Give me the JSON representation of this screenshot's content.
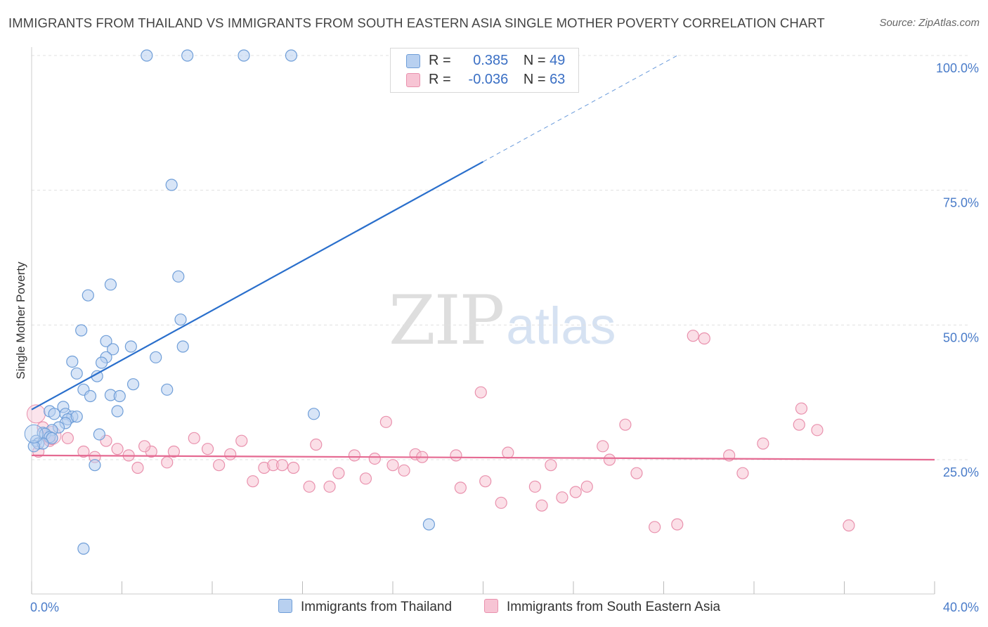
{
  "title": "IMMIGRANTS FROM THAILAND VS IMMIGRANTS FROM SOUTH EASTERN ASIA SINGLE MOTHER POVERTY CORRELATION CHART",
  "source": "Source: ZipAtlas.com",
  "watermark": {
    "zip": "ZIP",
    "atlas": "atlas"
  },
  "legend": {
    "rows": [
      {
        "r_label": "R =",
        "r_value": "0.385",
        "n_label": "N =",
        "n_value": "49"
      },
      {
        "r_label": "R =",
        "r_value": "-0.036",
        "n_label": "N =",
        "n_value": "63"
      }
    ]
  },
  "bottom_legend": [
    {
      "label": "Immigrants from Thailand"
    },
    {
      "label": "Immigrants from South Eastern Asia"
    }
  ],
  "colors": {
    "blue_fill": "#b8d0f0",
    "blue_stroke": "#6f9ed8",
    "blue_line": "#2a6fcc",
    "pink_fill": "#f7c4d4",
    "pink_stroke": "#e991ad",
    "pink_line": "#e56a92",
    "axis_text": "#4a7cc9",
    "grid": "#e0e0e0"
  },
  "chart_data": {
    "type": "scatter",
    "title": "IMMIGRANTS FROM THAILAND VS IMMIGRANTS FROM SOUTH EASTERN ASIA SINGLE MOTHER POVERTY CORRELATION CHART",
    "xlabel": "",
    "ylabel": "Single Mother Poverty",
    "xlim": [
      0,
      40
    ],
    "ylim": [
      0,
      103
    ],
    "x_tick_labels": [
      {
        "value": 0,
        "label": "0.0%"
      },
      {
        "value": 40,
        "label": "40.0%"
      }
    ],
    "y_tick_labels": [
      {
        "value": 25,
        "label": "25.0%"
      },
      {
        "value": 50,
        "label": "50.0%"
      },
      {
        "value": 75,
        "label": "75.0%"
      },
      {
        "value": 100,
        "label": "100.0%"
      }
    ],
    "series": [
      {
        "name": "Immigrants from Thailand",
        "R": 0.385,
        "N": 49,
        "trend": {
          "x0": 0.0,
          "y0": 34.3,
          "x1": 20.0,
          "y1": 80.3,
          "dashed_to_x": 28.6,
          "dashed_to_y": 100.0
        },
        "points": [
          [
            5.1,
            100.0
          ],
          [
            6.9,
            100.0
          ],
          [
            9.4,
            100.0
          ],
          [
            11.5,
            100.0
          ],
          [
            6.2,
            76.0
          ],
          [
            6.5,
            59.0
          ],
          [
            6.6,
            51.0
          ],
          [
            6.7,
            46.0
          ],
          [
            2.5,
            55.5
          ],
          [
            3.5,
            57.5
          ],
          [
            2.2,
            49.0
          ],
          [
            3.3,
            47.0
          ],
          [
            3.6,
            45.5
          ],
          [
            3.3,
            44.0
          ],
          [
            3.1,
            43.0
          ],
          [
            1.8,
            43.2
          ],
          [
            2.0,
            41.0
          ],
          [
            2.9,
            40.5
          ],
          [
            4.4,
            46.0
          ],
          [
            5.5,
            44.0
          ],
          [
            4.5,
            39.0
          ],
          [
            6.0,
            38.0
          ],
          [
            2.3,
            38.0
          ],
          [
            2.6,
            36.8
          ],
          [
            3.5,
            37.0
          ],
          [
            3.9,
            36.8
          ],
          [
            3.8,
            34.0
          ],
          [
            0.8,
            34.0
          ],
          [
            1.0,
            33.5
          ],
          [
            1.4,
            34.8
          ],
          [
            1.5,
            33.5
          ],
          [
            1.8,
            33.0
          ],
          [
            1.6,
            32.5
          ],
          [
            2.0,
            33.0
          ],
          [
            1.5,
            31.8
          ],
          [
            1.2,
            31.0
          ],
          [
            0.9,
            30.5
          ],
          [
            0.5,
            30.0
          ],
          [
            0.6,
            29.8
          ],
          [
            0.8,
            29.2
          ],
          [
            0.9,
            29.0
          ],
          [
            0.2,
            28.5
          ],
          [
            0.3,
            28.0
          ],
          [
            0.5,
            28.0
          ],
          [
            0.1,
            27.5
          ],
          [
            3.0,
            29.7
          ],
          [
            2.8,
            24.0
          ],
          [
            12.5,
            33.5
          ],
          [
            17.6,
            13.0
          ]
        ],
        "big_points": [
          [
            0.1,
            29.8
          ]
        ],
        "point_extra": [
          [
            2.3,
            8.5
          ]
        ]
      },
      {
        "name": "Immigrants from South Eastern Asia",
        "R": -0.036,
        "N": 63,
        "trend": {
          "x0": 0.0,
          "y0": 25.8,
          "x1": 40.0,
          "y1": 25.0
        },
        "points": [
          [
            0.5,
            31.0
          ],
          [
            0.8,
            28.5
          ],
          [
            1.6,
            29.0
          ],
          [
            3.3,
            28.5
          ],
          [
            3.8,
            27.0
          ],
          [
            4.3,
            25.8
          ],
          [
            4.7,
            23.5
          ],
          [
            5.3,
            26.5
          ],
          [
            6.3,
            26.5
          ],
          [
            7.2,
            29.0
          ],
          [
            7.8,
            27.0
          ],
          [
            8.3,
            24.0
          ],
          [
            8.8,
            26.0
          ],
          [
            9.3,
            28.5
          ],
          [
            9.8,
            21.0
          ],
          [
            10.3,
            23.5
          ],
          [
            10.7,
            24.0
          ],
          [
            11.1,
            24.0
          ],
          [
            11.6,
            23.5
          ],
          [
            12.3,
            20.0
          ],
          [
            12.6,
            27.8
          ],
          [
            13.2,
            20.0
          ],
          [
            13.6,
            22.5
          ],
          [
            14.3,
            25.8
          ],
          [
            14.8,
            21.5
          ],
          [
            15.2,
            25.2
          ],
          [
            15.7,
            32.0
          ],
          [
            16.0,
            24.0
          ],
          [
            16.5,
            23.0
          ],
          [
            17.0,
            26.0
          ],
          [
            17.3,
            25.5
          ],
          [
            18.8,
            25.8
          ],
          [
            19.0,
            19.8
          ],
          [
            19.9,
            37.5
          ],
          [
            20.1,
            21.0
          ],
          [
            20.8,
            17.0
          ],
          [
            21.1,
            26.3
          ],
          [
            22.3,
            20.0
          ],
          [
            22.6,
            16.5
          ],
          [
            23.0,
            24.0
          ],
          [
            23.5,
            18.0
          ],
          [
            24.1,
            19.0
          ],
          [
            24.6,
            20.0
          ],
          [
            25.3,
            27.5
          ],
          [
            25.6,
            25.0
          ],
          [
            26.3,
            31.5
          ],
          [
            26.8,
            22.5
          ],
          [
            27.6,
            12.5
          ],
          [
            28.6,
            13.0
          ],
          [
            29.3,
            48.0
          ],
          [
            29.8,
            47.5
          ],
          [
            30.9,
            25.8
          ],
          [
            31.5,
            22.5
          ],
          [
            32.4,
            28.0
          ],
          [
            34.0,
            31.5
          ],
          [
            34.1,
            34.5
          ],
          [
            34.8,
            30.5
          ],
          [
            36.2,
            12.8
          ],
          [
            2.3,
            26.5
          ],
          [
            2.8,
            25.5
          ],
          [
            0.3,
            26.5
          ],
          [
            5.0,
            27.5
          ],
          [
            6.0,
            24.5
          ]
        ],
        "big_points": [
          [
            0.2,
            33.5
          ],
          [
            0.9,
            29.5
          ]
        ]
      }
    ]
  }
}
